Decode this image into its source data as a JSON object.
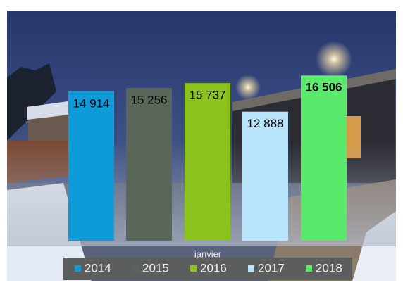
{
  "chart_data": {
    "type": "bar",
    "categories": [
      "janvier"
    ],
    "series": [
      {
        "name": "2014",
        "color": "#0f9ad8",
        "values": [
          14914
        ],
        "value_labels": [
          "14 914"
        ]
      },
      {
        "name": "2015",
        "color": "#5a6659",
        "values": [
          15256
        ],
        "value_labels": [
          "15 256"
        ]
      },
      {
        "name": "2016",
        "color": "#8cc21e",
        "values": [
          15737
        ],
        "value_labels": [
          "15 737"
        ]
      },
      {
        "name": "2017",
        "color": "#b7e3fb",
        "values": [
          12888
        ],
        "value_labels": [
          "12 888"
        ]
      },
      {
        "name": "2018",
        "color": "#5be96b",
        "values": [
          16506
        ],
        "value_labels": [
          "16 506"
        ]
      }
    ],
    "ylim": [
      0,
      18000
    ],
    "legend": "bottom"
  }
}
